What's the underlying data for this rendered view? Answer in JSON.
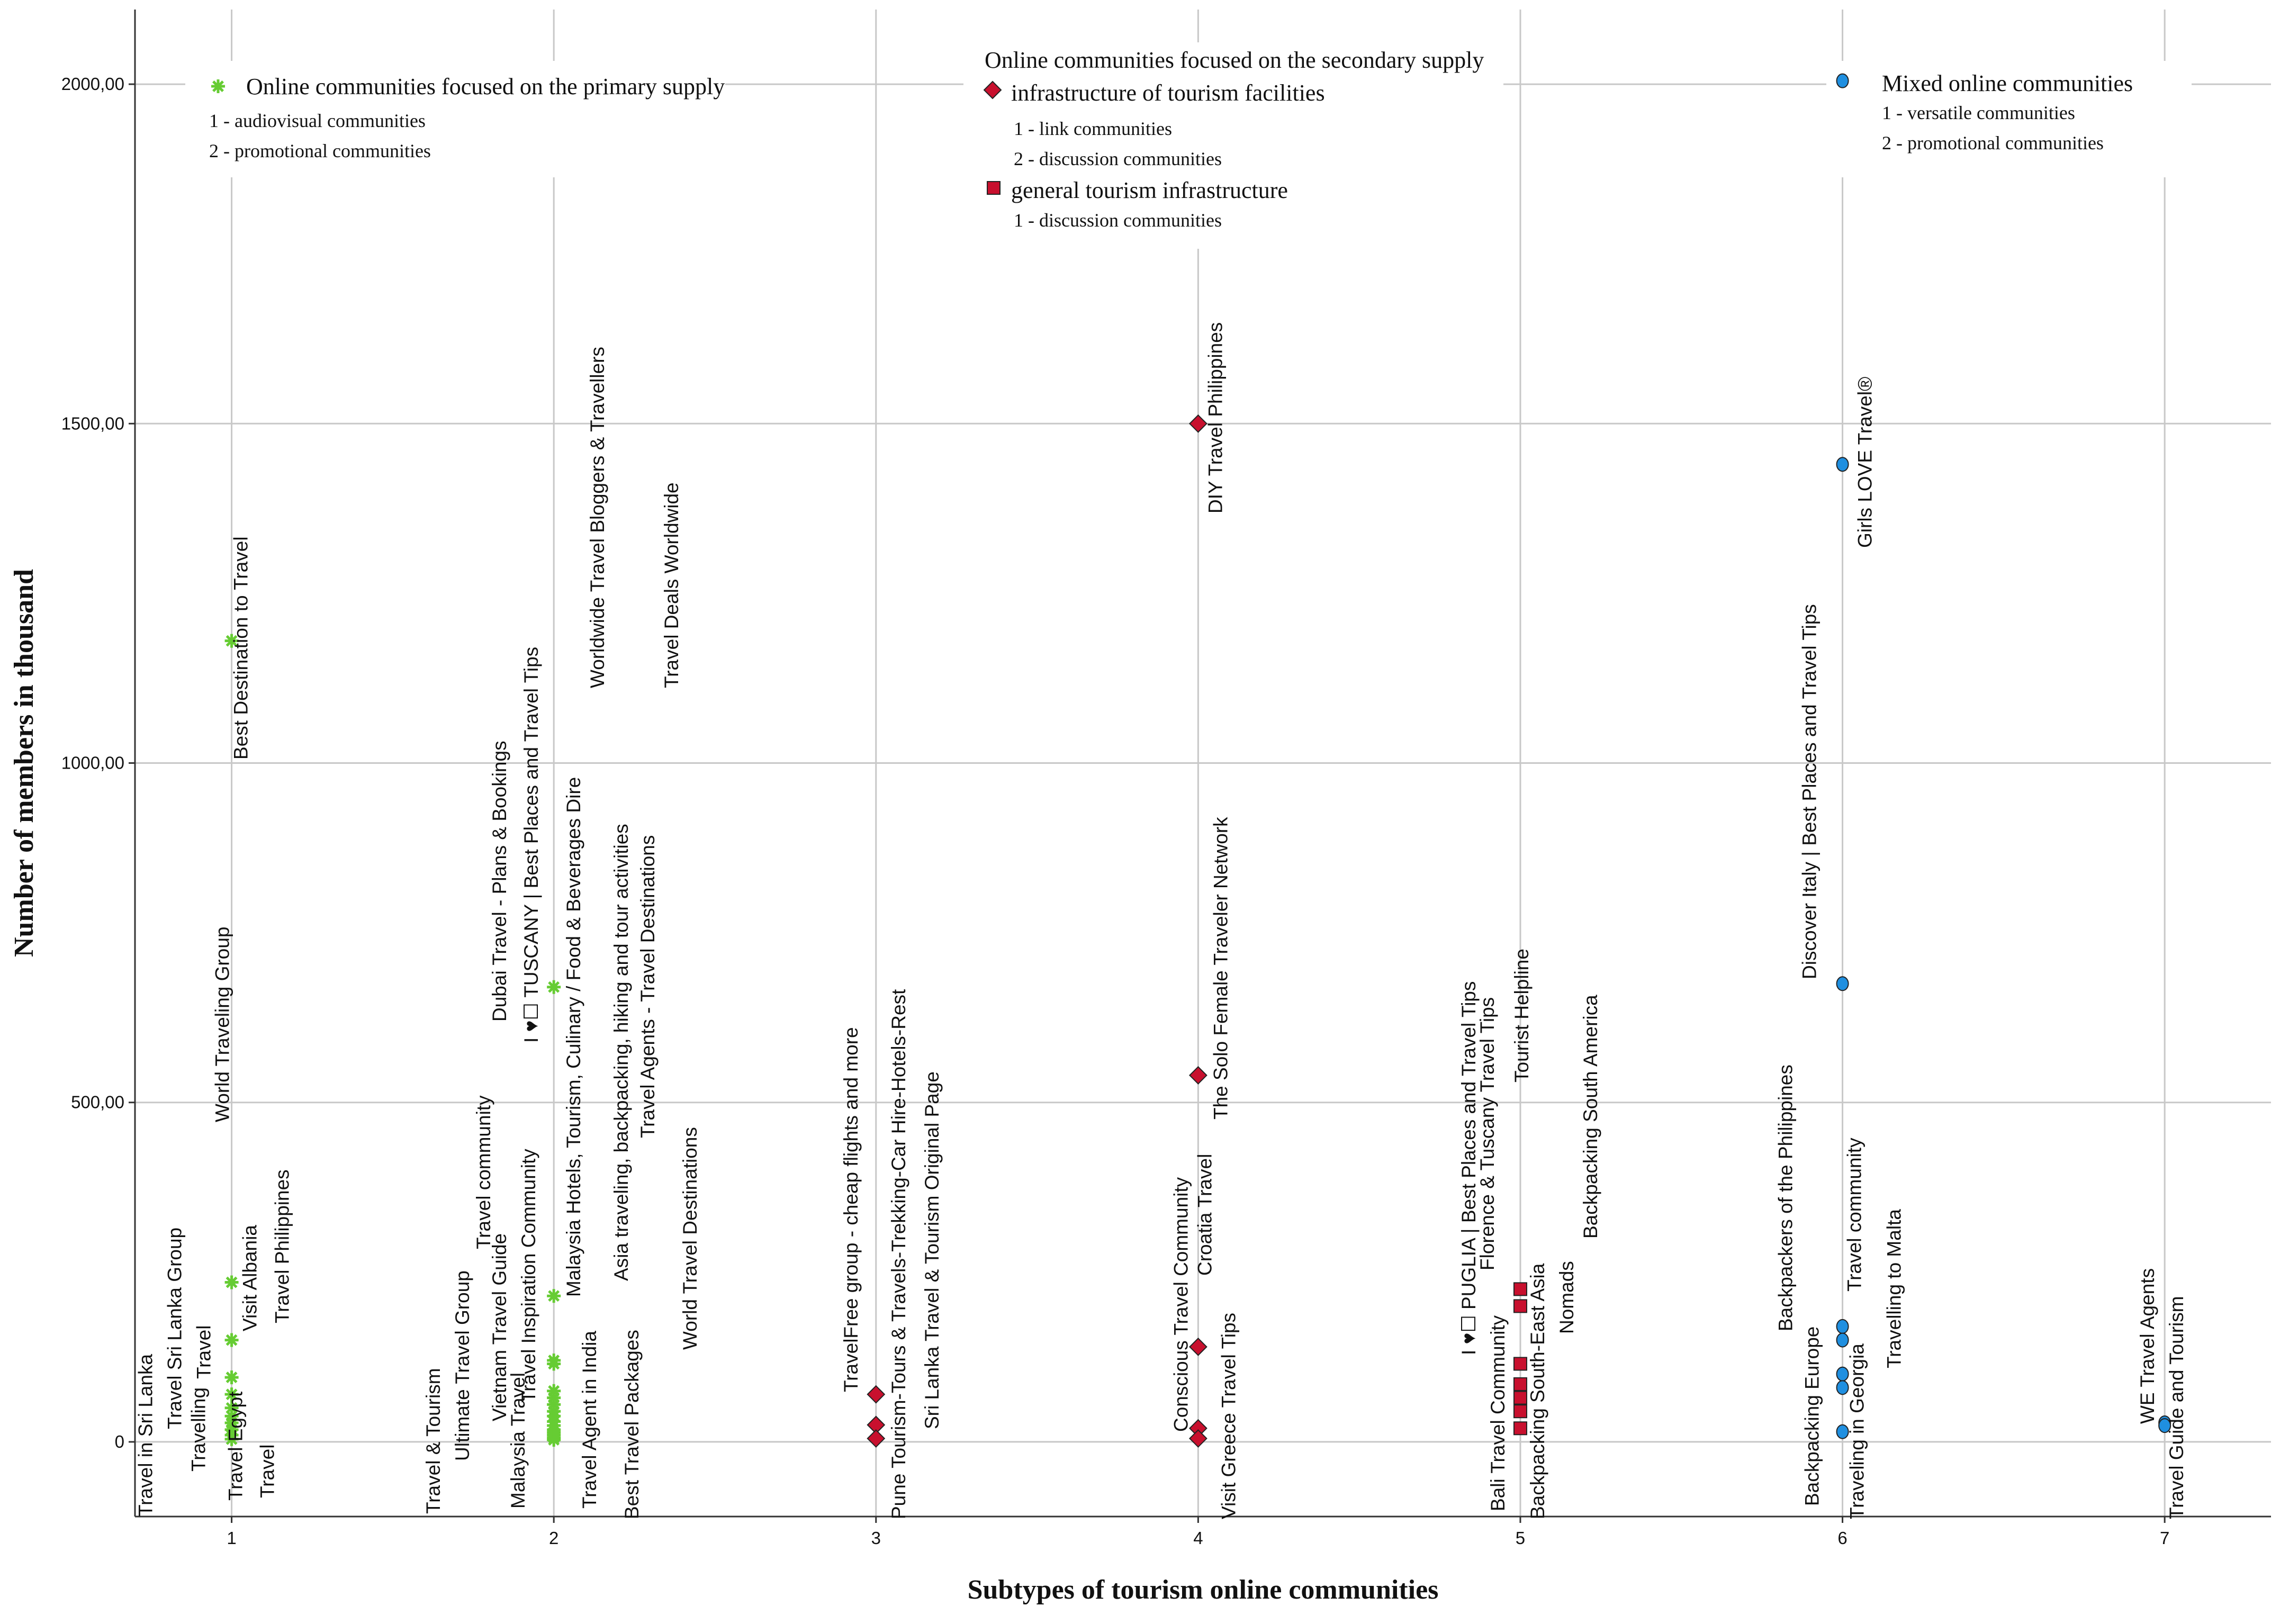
{
  "chart_data": {
    "type": "scatter",
    "xlabel": "Subtypes of tourism online communities",
    "ylabel": "Number of members in thousand",
    "xlim": [
      0.7,
      7.33
    ],
    "ylim": [
      -110,
      2110
    ],
    "x_ticks": [
      "1",
      "2",
      "3",
      "4",
      "5",
      "6",
      "7"
    ],
    "y_ticks": [
      {
        "value": 0,
        "label": "0"
      },
      {
        "value": 500,
        "label": "500,00"
      },
      {
        "value": 1000,
        "label": "1000,00"
      },
      {
        "value": 1500,
        "label": "1500,00"
      },
      {
        "value": 2000,
        "label": "2000,00"
      }
    ],
    "colors": {
      "primary": "#66cc33",
      "secondary": "#c8102e",
      "mixed": "#1f8fe0",
      "marker_edge": "#222222",
      "grid": "#c8c8c8"
    },
    "legend": [
      {
        "title": "Online communities focused on the primary supply",
        "marker": "asterisk",
        "color": "#66cc33",
        "entries": [
          "1 - audiovisual communities",
          "2 - promotional communities"
        ]
      },
      {
        "title": "Online communities focused on the secondary supply",
        "groups": [
          {
            "name": "infrastructure of tourism facilities",
            "marker": "diamond",
            "color": "#c8102e",
            "entries": [
              "1 - link communities",
              "2 - discussion communities"
            ]
          },
          {
            "name": "general tourism infrastructure",
            "marker": "square",
            "color": "#c8102e",
            "entries": [
              "1 - discussion communities"
            ]
          }
        ]
      },
      {
        "title": "Mixed online communities",
        "marker": "circle",
        "color": "#1f8fe0",
        "entries": [
          "1 - versatile communities",
          "2 - promotional communities"
        ]
      }
    ],
    "series": [
      {
        "name": "Online communities focused on the primary supply",
        "marker": "asterisk",
        "color": "#66cc33",
        "points": [
          {
            "x": 1,
            "y": 1180,
            "label": "Best Destination to Travel"
          },
          {
            "x": 1,
            "y": 235,
            "label": "World Traveling Group"
          },
          {
            "x": 1,
            "y": 150,
            "label": "Travel Philippines"
          },
          {
            "x": 1,
            "y": 95,
            "label": "Visit Albania"
          },
          {
            "x": 1,
            "y": 70,
            "label": "Travel Sri Lanka Group"
          },
          {
            "x": 1,
            "y": 50,
            "label": "Travel"
          },
          {
            "x": 1,
            "y": 38,
            "label": "Travel Egypt"
          },
          {
            "x": 1,
            "y": 28,
            "label": "Travelling"
          },
          {
            "x": 1,
            "y": 18,
            "label": "Travel in Sri Lanka"
          },
          {
            "x": 1,
            "y": 10,
            "label": "Travel"
          },
          {
            "x": 1,
            "y": 4,
            "label": "Travel"
          },
          {
            "x": 2,
            "y": 670,
            "label": "Dubai Travel - Plans & Bookings"
          },
          {
            "x": 2,
            "y": 215,
            "label": "Worldwide Travel Bloggers & Travellers"
          },
          {
            "x": 2,
            "y": 120,
            "label": "Travel Deals Worldwide"
          },
          {
            "x": 2,
            "y": 115,
            "label": "I ♥☐ TUSCANY | Best Places and Travel Tips"
          },
          {
            "x": 2,
            "y": 75,
            "label": "Malaysia Hotels, Tourism, Culinary / Food & Beverages Dire"
          },
          {
            "x": 2,
            "y": 65,
            "label": "Asia traveling, backpacking, hiking and tour activities"
          },
          {
            "x": 2,
            "y": 55,
            "label": "Travel Agents - Travel Destinations"
          },
          {
            "x": 2,
            "y": 45,
            "label": "Travel community"
          },
          {
            "x": 2,
            "y": 38,
            "label": "Travel Inspiration Community"
          },
          {
            "x": 2,
            "y": 30,
            "label": "World Travel Destinations"
          },
          {
            "x": 2,
            "y": 24,
            "label": "Travel Agent in India"
          },
          {
            "x": 2,
            "y": 18,
            "label": "Ultimate Travel Group"
          },
          {
            "x": 2,
            "y": 14,
            "label": "Vietnam Travel Guide"
          },
          {
            "x": 2,
            "y": 10,
            "label": "Malaysia Travel"
          },
          {
            "x": 2,
            "y": 6,
            "label": "Best Travel Packages"
          },
          {
            "x": 2,
            "y": 3,
            "label": "Travel & Tourism"
          }
        ]
      },
      {
        "name": "infrastructure of tourism facilities",
        "marker": "diamond",
        "color": "#c8102e",
        "points": [
          {
            "x": 3,
            "y": 70,
            "label": "TravelFree group - cheap flights and more"
          },
          {
            "x": 3,
            "y": 25,
            "label": "Sri Lanka Travel & Tourism Original Page"
          },
          {
            "x": 3,
            "y": 5,
            "label": "Pune Tourism-Tours & Travels-Trekking-Car Hire-Hotels-Rest"
          },
          {
            "x": 4,
            "y": 1500,
            "label": "DIY Travel Philippines"
          },
          {
            "x": 4,
            "y": 540,
            "label": "The Solo Female Traveler Network"
          },
          {
            "x": 4,
            "y": 140,
            "label": "Croatia Travel"
          },
          {
            "x": 4,
            "y": 20,
            "label": "Conscious Travel Community"
          },
          {
            "x": 4,
            "y": 5,
            "label": "Visit Greece Travel Tips"
          }
        ]
      },
      {
        "name": "general tourism infrastructure",
        "marker": "square",
        "color": "#c8102e",
        "points": [
          {
            "x": 5,
            "y": 225,
            "label": "Backpacking South America"
          },
          {
            "x": 5,
            "y": 200,
            "label": "Tourist Helpline"
          },
          {
            "x": 5,
            "y": 115,
            "label": "Nomads"
          },
          {
            "x": 5,
            "y": 85,
            "label": "Florence & Tuscany Travel Tips"
          },
          {
            "x": 5,
            "y": 65,
            "label": "I ♥☐ PUGLIA | Best Places and Travel Tips"
          },
          {
            "x": 5,
            "y": 45,
            "label": "Backpacking South-East Asia"
          },
          {
            "x": 5,
            "y": 20,
            "label": "Bali Travel Community"
          }
        ]
      },
      {
        "name": "Mixed online communities",
        "marker": "circle",
        "color": "#1f8fe0",
        "points": [
          {
            "x": 6,
            "y": 2005,
            "label": ""
          },
          {
            "x": 6,
            "y": 1440,
            "label": "Girls LOVE Travel®"
          },
          {
            "x": 6,
            "y": 675,
            "label": "Discover Italy | Best Places and Travel Tips"
          },
          {
            "x": 6,
            "y": 170,
            "label": "Travel community"
          },
          {
            "x": 6,
            "y": 150,
            "label": "Backpackers of the Philippines"
          },
          {
            "x": 6,
            "y": 100,
            "label": "Travelling to Malta"
          },
          {
            "x": 6,
            "y": 80,
            "label": "Traveling in Georgia"
          },
          {
            "x": 6,
            "y": 15,
            "label": "Backpacking Europe"
          },
          {
            "x": 7,
            "y": 28,
            "label": "WE Travel Agents"
          },
          {
            "x": 7,
            "y": 24,
            "label": "Travel Guide and Tourism"
          }
        ]
      }
    ]
  }
}
